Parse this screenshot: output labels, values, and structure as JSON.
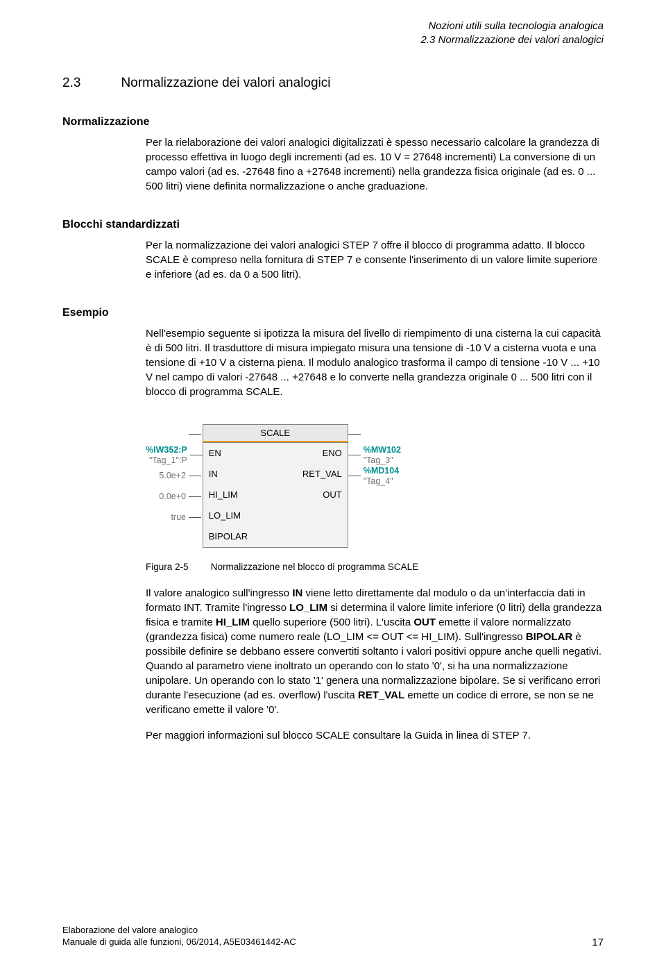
{
  "header": {
    "line1": "Nozioni utili sulla tecnologia analogica",
    "line2": "2.3 Normalizzazione dei valori analogici"
  },
  "section": {
    "number": "2.3",
    "title": "Normalizzazione dei valori analogici"
  },
  "normalizzazione": {
    "heading": "Normalizzazione",
    "text": "Per la rielaborazione dei valori analogici digitalizzati è spesso necessario calcolare la grandezza di processo effettiva in luogo degli incrementi (ad es. 10 V = 27648 incrementi) La conversione di un campo valori (ad es. -27648 fino a +27648 incrementi) nella grandezza fisica originale (ad es. 0 ... 500 litri) viene definita normalizzazione o anche graduazione."
  },
  "blocchi": {
    "heading": "Blocchi standardizzati",
    "text": "Per la normalizzazione dei valori analogici STEP 7 offre il blocco di programma adatto. Il blocco SCALE è compreso nella fornitura di STEP 7 e consente l'inserimento di un valore limite superiore e inferiore (ad es. da 0 a 500 litri)."
  },
  "esempio": {
    "heading": "Esempio",
    "text": "Nell'esempio seguente si ipotizza la misura del livello di riempimento di una cisterna la cui capacità è di 500 litri. Il trasduttore di misura impiegato misura una tensione di -10 V a cisterna vuota e una tensione di +10 V a cisterna piena. Il modulo analogico trasforma il campo di tensione -10 V ... +10 V nel campo di valori -27648 ... +27648 e lo converte nella grandezza originale 0 ... 500 litri con il blocco di programma SCALE."
  },
  "scale_block": {
    "title": "SCALE",
    "left_ports": [
      "EN",
      "IN",
      "HI_LIM",
      "LO_LIM",
      "BIPOLAR"
    ],
    "right_ports": [
      "ENO",
      "RET_VAL",
      "OUT"
    ],
    "left_values": [
      {
        "addr": "%IW352:P",
        "tag": "\"Tag_1\":P"
      },
      {
        "plain": "5.0e+2"
      },
      {
        "plain": "0.0e+0"
      },
      {
        "plain": "true"
      }
    ],
    "right_values": [
      {
        "addr": "%MW102",
        "tag": "\"Tag_3\""
      },
      {
        "addr": "%MD104",
        "tag": "\"Tag_4\""
      }
    ],
    "colors": {
      "title_bg": "#e8e8e8",
      "title_border_bottom": "#f0a020",
      "box_bg": "#f2f2f2",
      "box_border": "#808080",
      "addr_color": "#009090",
      "tag_color": "#707070"
    }
  },
  "figure": {
    "label": "Figura 2-5",
    "caption": "Normalizzazione nel blocco di programma SCALE"
  },
  "para_in": "Il valore analogico sull'ingresso IN viene letto direttamente dal modulo o da un'interfaccia dati in formato INT. Tramite l'ingresso LO_LIM si determina il valore limite inferiore (0 litri) della grandezza fisica e tramite HI_LIM quello superiore (500 litri). L'uscita OUT emette il valore normalizzato (grandezza fisica) come numero reale (LO_LIM <= OUT <= HI_LIM). Sull'ingresso BIPOLAR è possibile definire se debbano essere convertiti soltanto i valori positivi oppure anche quelli negativi. Quando al parametro viene inoltrato un operando con lo stato '0', si ha una normalizzazione unipolare. Un operando con lo stato '1' genera una normalizzazione bipolare. Se si verificano errori durante l'esecuzione (ad es. overflow) l'uscita RET_VAL emette un codice di errore, se non se ne verificano emette il valore '0'.",
  "para_more": "Per maggiori informazioni sul blocco SCALE consultare la Guida in linea di STEP 7.",
  "footer": {
    "line1": "Elaborazione del valore analogico",
    "line2": "Manuale di guida alle funzioni, 06/2014, A5E03461442-AC",
    "page": "17"
  }
}
